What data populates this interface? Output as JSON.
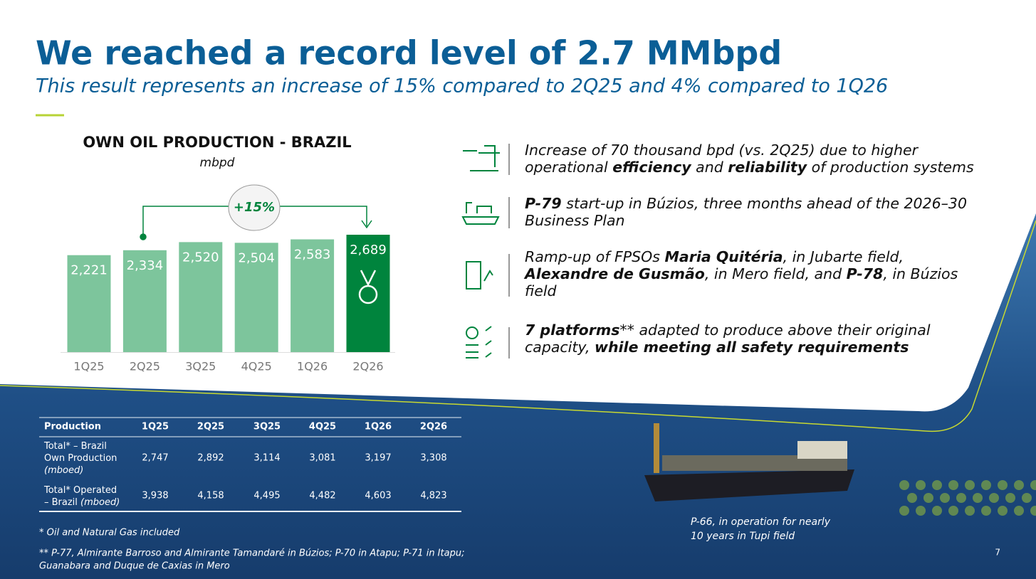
{
  "header": {
    "title": "We reached a record level of 2.7 MMbpd",
    "subtitle": "This result represents an increase of 15% compared to 2Q25 and 4% compared to 1Q26"
  },
  "chart_data": {
    "type": "bar",
    "title": "OWN OIL PRODUCTION - BRAZIL",
    "subtitle": "mbpd",
    "categories": [
      "1Q25",
      "2Q25",
      "3Q25",
      "4Q25",
      "1Q26",
      "2Q26"
    ],
    "values": [
      2221,
      2334,
      2520,
      2504,
      2583,
      2689
    ],
    "value_labels": [
      "2,221",
      "2,334",
      "2,520",
      "2,504",
      "2,583",
      "2,689"
    ],
    "colors": [
      "#7dc59c",
      "#7dc59c",
      "#7dc59c",
      "#7dc59c",
      "#7dc59c",
      "#00843d"
    ],
    "annotation": "+15%"
  },
  "bullets": [
    {
      "lines": [
        [
          {
            "text": "Increase of 70 thousand bpd (vs. 2Q25) due to higher"
          }
        ],
        [
          {
            "text": "operational "
          },
          {
            "text": "efficiency",
            "b": true
          },
          {
            "text": " and "
          },
          {
            "text": "reliability",
            "b": true
          },
          {
            "text": " of production systems"
          }
        ]
      ]
    },
    {
      "lines": [
        [
          {
            "text": "P-79",
            "b": true
          },
          {
            "text": " start-up in Búzios, three months ahead of the 2026–30"
          }
        ],
        [
          {
            "text": "Business Plan"
          }
        ]
      ]
    },
    {
      "lines": [
        [
          {
            "text": "Ramp-up of FPSOs "
          },
          {
            "text": "Maria Quitéria",
            "b": true
          },
          {
            "text": ", in Jubarte field,"
          }
        ],
        [
          {
            "text": "Alexandre de Gusmão",
            "b": true
          },
          {
            "text": ", in Mero field, and "
          },
          {
            "text": "P-78",
            "b": true
          },
          {
            "text": ", in Búzios"
          }
        ],
        [
          {
            "text": "field"
          }
        ]
      ]
    },
    {
      "lines": [
        [
          {
            "text": "7 platforms",
            "b": true
          },
          {
            "text": "** adapted to produce above their original"
          }
        ],
        [
          {
            "text": "capacity, "
          },
          {
            "text": "while meeting all safety requirements",
            "b": true
          }
        ]
      ]
    }
  ],
  "table": {
    "header": [
      "Production",
      "1Q25",
      "2Q25",
      "3Q25",
      "4Q25",
      "1Q26",
      "2Q26"
    ],
    "rows": [
      {
        "label": [
          [
            {
              "text": "Total* – Brazil"
            }
          ],
          [
            {
              "text": "Own Production"
            }
          ],
          [
            {
              "text": "(mboed)",
              "i": true
            }
          ]
        ],
        "cells": [
          "2,747",
          "2,892",
          "3,114",
          "3,081",
          "3,197",
          "3,308"
        ]
      },
      {
        "label": [
          [
            {
              "text": "Total* Operated"
            }
          ],
          [
            {
              "text": "– Brazil "
            },
            {
              "text": "(mboed)",
              "i": true
            }
          ]
        ],
        "cells": [
          "3,938",
          "4,158",
          "4,495",
          "4,482",
          "4,603",
          "4,823"
        ]
      }
    ]
  },
  "footnotes": [
    "* Oil and Natural Gas included",
    "** P-77, Almirante Barroso and Almirante Tamandaré in Búzios; P-70 in Atapu; P-71 in Itapu;",
    "Guanabara and Duque de Caxias in Mero"
  ],
  "caption": [
    "P-66, in operation for nearly",
    "10 years in Tupi field"
  ],
  "page_number": "7"
}
